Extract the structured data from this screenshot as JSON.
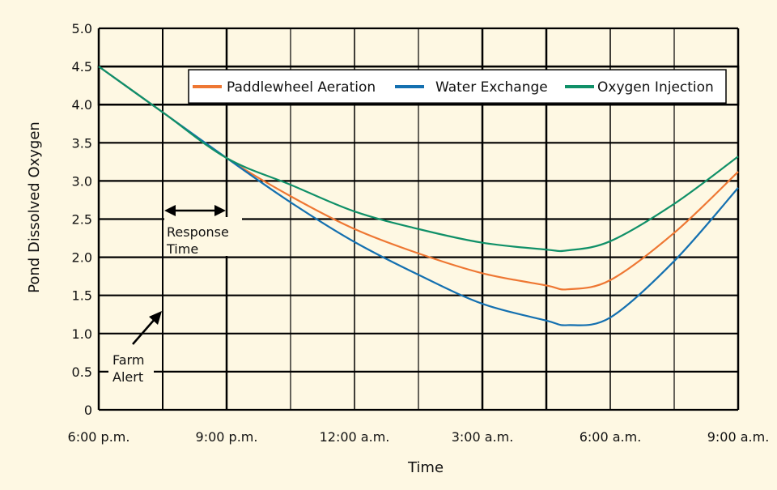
{
  "chart_data": {
    "type": "line",
    "title": "",
    "xlabel": "Time",
    "ylabel": "Pond Dissolved Oxygen",
    "ylim": [
      0,
      5.0
    ],
    "yticks": [
      "0",
      "0.5",
      "1.0",
      "1.5",
      "2.0",
      "2.5",
      "3.0",
      "3.5",
      "4.0",
      "4.5",
      "5.0"
    ],
    "xticks": [
      {
        "time": "18:00",
        "label": "6:00 p.m."
      },
      {
        "time": "21:00",
        "label": "9:00 p.m."
      },
      {
        "time": "00:00",
        "label": "12:00 a.m."
      },
      {
        "time": "03:00",
        "label": "3:00 a.m."
      },
      {
        "time": "06:00",
        "label": "6:00 a.m."
      },
      {
        "time": "09:00",
        "label": "9:00 a.m."
      }
    ],
    "xlim": [
      "18:00",
      "09:00"
    ],
    "grid": true,
    "legend_position": "top",
    "x": [
      "18:00",
      "19:30",
      "21:00",
      "22:30",
      "00:00",
      "01:30",
      "03:00",
      "04:30",
      "05:00",
      "06:00",
      "07:30",
      "09:00"
    ],
    "series": [
      {
        "name": "Paddlewheel Aeration",
        "color": "#ee7733",
        "values": [
          4.5,
          3.9,
          3.3,
          2.8,
          2.37,
          2.05,
          1.79,
          1.63,
          1.58,
          1.7,
          2.32,
          3.12
        ]
      },
      {
        "name": "Water Exchange",
        "color": "#1470b0",
        "values": [
          4.5,
          3.9,
          3.3,
          2.72,
          2.2,
          1.77,
          1.39,
          1.17,
          1.11,
          1.21,
          1.95,
          2.91
        ]
      },
      {
        "name": "Oxygen Injection",
        "color": "#109068",
        "values": [
          4.5,
          3.9,
          3.3,
          2.95,
          2.6,
          2.37,
          2.19,
          2.1,
          2.09,
          2.21,
          2.7,
          3.32
        ]
      }
    ],
    "annotations": [
      {
        "text_line1": "Response",
        "text_line2": "Time",
        "from": "19:30",
        "to": "21:00",
        "type": "double-arrow"
      },
      {
        "text_line1": "Farm",
        "text_line2": "Alert",
        "at": "19:30",
        "type": "arrow"
      }
    ]
  }
}
